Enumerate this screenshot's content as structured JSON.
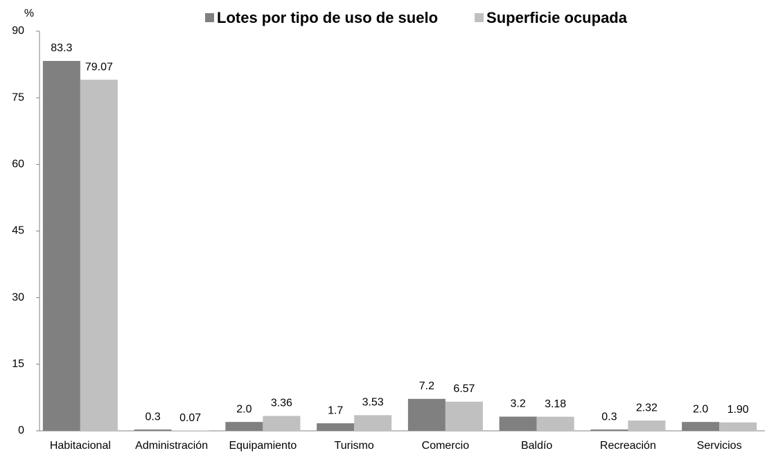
{
  "chart_data": {
    "type": "bar",
    "ylabel": "%",
    "categories": [
      "Habitacional",
      "Administración",
      "Equipamiento",
      "Turismo",
      "Comercio",
      "Baldío",
      "Recreación",
      "Servicios"
    ],
    "series": [
      {
        "name": "Lotes por tipo de uso de suelo",
        "color": "#808080",
        "values": [
          83.3,
          0.3,
          2.0,
          1.7,
          7.2,
          3.2,
          0.3,
          2.0
        ],
        "value_labels": [
          "83.3",
          "0.3",
          "2.0",
          "1.7",
          "7.2",
          "3.2",
          "0.3",
          "2.0"
        ]
      },
      {
        "name": "Superficie ocupada",
        "color": "#c0c0c0",
        "values": [
          79.07,
          0.07,
          3.36,
          3.53,
          6.57,
          3.18,
          2.32,
          1.9
        ],
        "value_labels": [
          "79.07",
          "0.07",
          "3.36",
          "3.53",
          "6.57",
          "3.18",
          "2.32",
          "1.90"
        ]
      }
    ],
    "ylim": [
      0,
      90
    ],
    "yticks": [
      0,
      15,
      30,
      45,
      60,
      75,
      90
    ],
    "grid": false,
    "legend": "top"
  }
}
